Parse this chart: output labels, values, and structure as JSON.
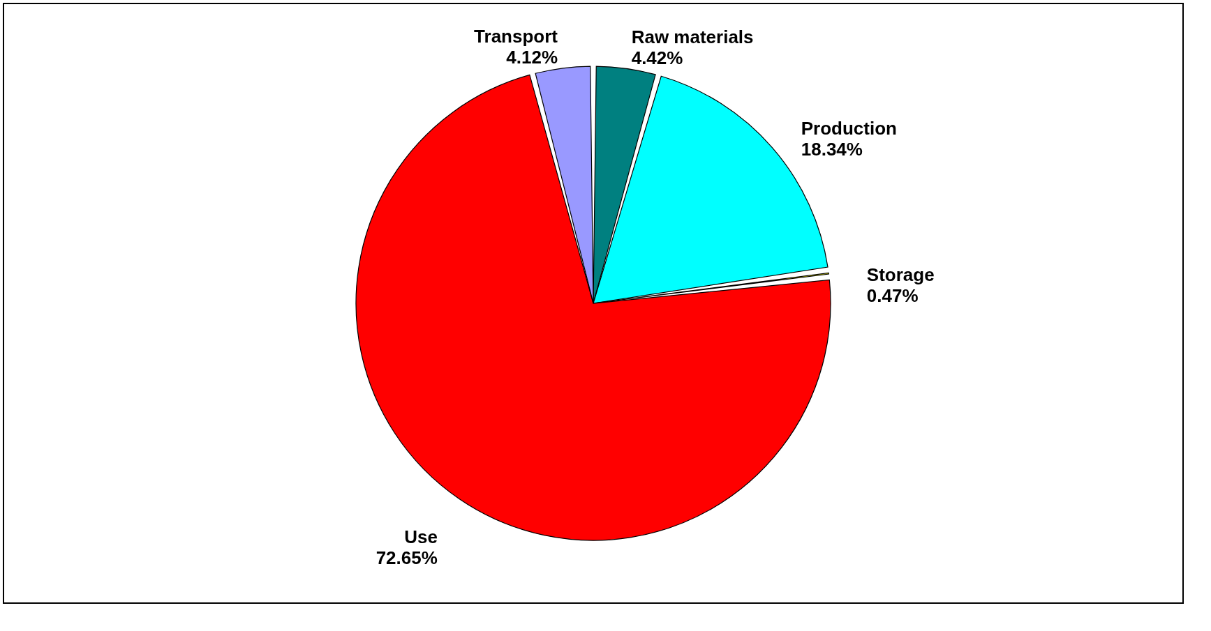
{
  "chart_data": {
    "type": "pie",
    "categories": [
      "Raw materials",
      "Production",
      "Storage",
      "Use",
      "Transport"
    ],
    "values": [
      4.42,
      18.34,
      0.47,
      72.65,
      4.12
    ],
    "value_labels": [
      "4.42%",
      "18.34%",
      "0.47%",
      "72.65%",
      "4.12%"
    ],
    "colors": [
      "#008080",
      "#00ffff",
      "#ffff00",
      "#ff0000",
      "#9999ff"
    ],
    "legend": false
  }
}
